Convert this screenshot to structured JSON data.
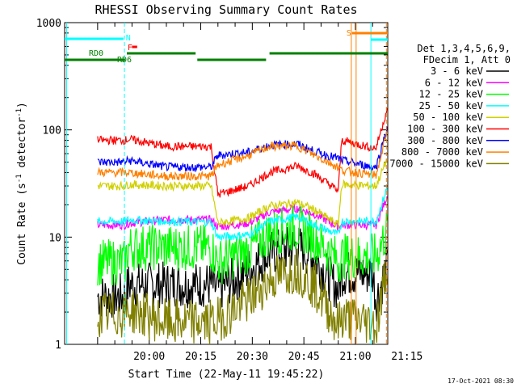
{
  "chart_data": {
    "type": "line",
    "title": "RHESSI Observing Summary Count Rates",
    "xlabel": "Start Time (22-May-11 19:45:22)",
    "ylabel_pre": "Count Rate (s",
    "ylabel_sup": "-1",
    "ylabel_mid": " detector",
    "ylabel_end": ")",
    "yscale": "log",
    "ylim": [
      1,
      1000
    ],
    "xlim_min": [
      -9.6,
      84.4
    ],
    "x_tick_labels": [
      {
        "t": 15,
        "label": "20:00"
      },
      {
        "t": 30,
        "label": "20:15"
      },
      {
        "t": 45,
        "label": "20:30"
      },
      {
        "t": 60,
        "label": "20:45"
      },
      {
        "t": 75,
        "label": "21:00"
      },
      {
        "t": 90,
        "label": "21:15"
      }
    ],
    "y_tick_labels": [
      {
        "v": 1,
        "label": "1"
      },
      {
        "v": 10,
        "label": "10"
      },
      {
        "v": 100,
        "label": "100"
      },
      {
        "v": 1000,
        "label": "1000"
      }
    ],
    "legend_header": [
      "Det 1,3,4,5,6,9,",
      "FDecim 1, Att 0"
    ],
    "series": [
      {
        "name": "3 - 6 keV",
        "color": "#000000",
        "t": [
          0,
          8,
          9,
          20,
          33,
          35,
          44,
          50,
          58,
          63,
          70,
          71,
          80,
          81,
          84.4
        ],
        "v": [
          2.8,
          2.8,
          3.6,
          3.6,
          3.6,
          3.2,
          5.0,
          7.0,
          8.2,
          6.5,
          3.2,
          4.6,
          4.6,
          2.6,
          5.5
        ]
      },
      {
        "name": "6 - 12 keV",
        "color": "#ff00ff",
        "t": [
          0,
          8,
          9,
          20,
          33,
          35,
          44,
          50,
          58,
          63,
          70,
          71,
          80,
          81,
          84.4
        ],
        "v": [
          13,
          13,
          13.5,
          14.5,
          14.5,
          12.5,
          13.5,
          17.0,
          18.5,
          16.5,
          12.5,
          13,
          13,
          13,
          25
        ]
      },
      {
        "name": "12 - 25 keV",
        "color": "#00ff00",
        "t": [
          0,
          8,
          9,
          20,
          33,
          35,
          44,
          50,
          58,
          63,
          70,
          71,
          80,
          81,
          84.4
        ],
        "v": [
          5.8,
          5.8,
          8.0,
          8.0,
          8.0,
          5.8,
          7.5,
          11.0,
          12.2,
          10.0,
          6.0,
          6.6,
          6.6,
          6.6,
          12
        ]
      },
      {
        "name": "25 - 50 keV",
        "color": "#00ffff",
        "t": [
          0,
          8,
          9,
          20,
          33,
          35,
          44,
          50,
          58,
          63,
          70,
          71,
          80,
          81,
          84.4
        ],
        "v": [
          14,
          14,
          14.5,
          14.0,
          13.8,
          10.0,
          10.5,
          14.0,
          15.5,
          13.0,
          10.5,
          14,
          14,
          14,
          30
        ]
      },
      {
        "name": "50 - 100 keV",
        "color": "#d0d000",
        "t": [
          0,
          8,
          9,
          20,
          33,
          35,
          44,
          50,
          58,
          63,
          70,
          71,
          80,
          81,
          84.4
        ],
        "v": [
          30,
          30,
          31,
          30,
          30,
          13.5,
          15,
          19.5,
          21,
          18,
          13,
          31,
          30,
          30,
          55
        ]
      },
      {
        "name": "100 - 300 keV",
        "color": "#ff0000",
        "t": [
          0,
          8,
          9,
          20,
          33,
          35,
          44,
          50,
          58,
          63,
          70,
          71,
          80,
          81,
          84.4
        ],
        "v": [
          80,
          80,
          82,
          70,
          70,
          25,
          30,
          40,
          46,
          39,
          27,
          80,
          68,
          68,
          165
        ]
      },
      {
        "name": "300 - 800 keV",
        "color": "#0000ff",
        "t": [
          0,
          8,
          9,
          20,
          33,
          35,
          44,
          50,
          58,
          63,
          70,
          71,
          80,
          81,
          84.4
        ],
        "v": [
          50,
          50,
          52,
          45,
          45,
          58,
          62,
          72,
          74,
          63,
          54,
          52,
          45,
          45,
          110
        ]
      },
      {
        "name": "800 - 7000 keV",
        "color": "#ff8000",
        "t": [
          0,
          8,
          9,
          20,
          33,
          35,
          44,
          50,
          58,
          63,
          70,
          71,
          80,
          81,
          84.4
        ],
        "v": [
          40,
          40,
          40,
          37,
          37,
          47,
          58,
          70,
          71,
          58,
          45,
          42,
          38,
          38,
          100
        ]
      },
      {
        "name": "7000 - 15000 keV",
        "color": "#808000",
        "t": [
          0,
          8,
          9,
          20,
          33,
          35,
          44,
          50,
          58,
          63,
          70,
          71,
          80,
          81,
          84.4
        ],
        "v": [
          1.9,
          1.9,
          2.1,
          1.6,
          1.6,
          1.7,
          2.6,
          4.0,
          5.0,
          3.5,
          1.5,
          1.8,
          1.6,
          1.4,
          6.0
        ]
      }
    ],
    "annotations": [
      {
        "label": "N",
        "color": "#00ffff"
      },
      {
        "label": "F",
        "color": "#ff0000"
      },
      {
        "label": "RD0",
        "color": "#008000"
      },
      {
        "label": "RD6",
        "color": "#008000"
      },
      {
        "label": "S",
        "color": "#ff8000"
      }
    ],
    "timestamp": "17-Oct-2021 08:30"
  }
}
